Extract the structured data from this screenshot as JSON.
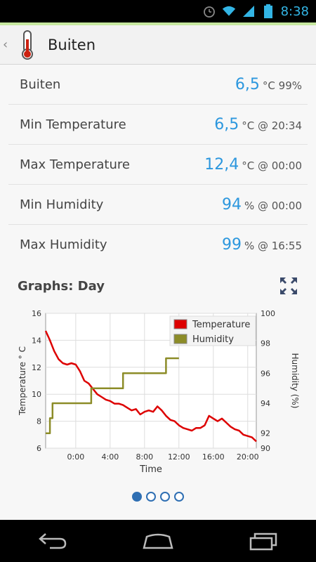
{
  "status": {
    "time": "8:38"
  },
  "actionbar": {
    "title": "Buiten"
  },
  "rows": [
    {
      "label": "Buiten",
      "value": "6,5",
      "unit": "°C 99%"
    },
    {
      "label": "Min Temperature",
      "value": "6,5",
      "unit": "°C @ 20:34"
    },
    {
      "label": "Max Temperature",
      "value": "12,4",
      "unit": "°C @ 00:00"
    },
    {
      "label": "Min Humidity",
      "value": "94",
      "unit": "% @ 00:00"
    },
    {
      "label": "Max Humidity",
      "value": "99",
      "unit": "% @ 16:55"
    }
  ],
  "graphs": {
    "title": "Graphs: Day"
  },
  "pager": {
    "count": 4,
    "active": 0
  },
  "chart_data": {
    "type": "line",
    "xlabel": "Time",
    "ylabel": "Temperature ° C",
    "y2label": "Humidity (%)",
    "xticks": [
      "0:00",
      "4:00",
      "8:00",
      "12:00",
      "16:00",
      "20:00"
    ],
    "xtick_hours": [
      0,
      4,
      8,
      12,
      16,
      20
    ],
    "xlim": [
      -3.5,
      21
    ],
    "ylim": [
      6,
      16
    ],
    "yticks": [
      6,
      8,
      10,
      12,
      14,
      16
    ],
    "y2lim": [
      91,
      100
    ],
    "y2ticks": [
      92,
      94,
      96,
      98,
      100
    ],
    "y2tick_labels": [
      "92",
      "94",
      "96",
      "98",
      "100"
    ],
    "y2bottom_label": "90",
    "legend": [
      "Temperature",
      "Humidity"
    ],
    "legend_position": "top-right",
    "series": [
      {
        "name": "Temperature",
        "color": "#dd0000",
        "axis": "left",
        "x": [
          -3.5,
          -3,
          -2.5,
          -2,
          -1.5,
          -1,
          -0.5,
          0,
          0.5,
          1,
          1.5,
          2,
          2.5,
          3,
          3.5,
          4,
          4.5,
          5,
          5.5,
          6,
          6.5,
          7,
          7.5,
          8,
          8.5,
          9,
          9.5,
          10,
          10.5,
          11,
          11.5,
          12,
          12.5,
          13,
          13.5,
          14,
          14.5,
          15,
          15.5,
          16,
          16.5,
          17,
          17.5,
          18,
          18.5,
          19,
          19.5,
          20,
          20.5,
          21
        ],
        "y": [
          14.7,
          14.0,
          13.2,
          12.6,
          12.3,
          12.2,
          12.3,
          12.2,
          11.7,
          11.0,
          10.8,
          10.4,
          10.0,
          9.8,
          9.6,
          9.5,
          9.3,
          9.3,
          9.2,
          9.0,
          8.8,
          8.9,
          8.5,
          8.7,
          8.8,
          8.7,
          9.1,
          8.8,
          8.4,
          8.1,
          8.0,
          7.7,
          7.5,
          7.4,
          7.3,
          7.5,
          7.5,
          7.7,
          8.4,
          8.2,
          8.0,
          8.2,
          7.9,
          7.6,
          7.4,
          7.3,
          7.0,
          6.9,
          6.8,
          6.5
        ]
      },
      {
        "name": "Humidity",
        "color": "#8c8c28",
        "axis": "right",
        "x": [
          -3.5,
          -3,
          -3,
          -2.7,
          -2.7,
          -2.4,
          -2.4,
          -2.1,
          -2.1,
          -1.8,
          -1.8,
          1.8,
          1.8,
          5.5,
          5.5,
          10.5,
          10.5,
          12,
          12
        ],
        "y": [
          92,
          92,
          93,
          93,
          94,
          94,
          94,
          94,
          94,
          94,
          94,
          94,
          95,
          95,
          96,
          96,
          97,
          97,
          97
        ]
      }
    ]
  }
}
